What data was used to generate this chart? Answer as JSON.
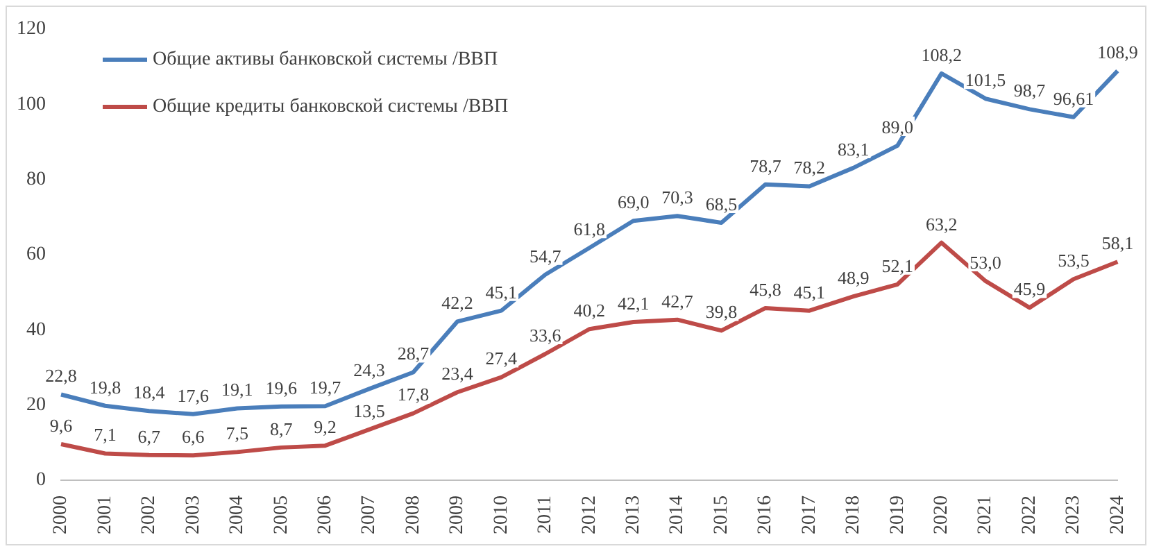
{
  "chart_data": {
    "type": "line",
    "categories": [
      "2000",
      "2001",
      "2002",
      "2003",
      "2004",
      "2005",
      "2006",
      "2007",
      "2008",
      "2009",
      "2010",
      "2011",
      "2012",
      "2013",
      "2014",
      "2015",
      "2016",
      "2017",
      "2018",
      "2019",
      "2020",
      "2021",
      "2022",
      "2023",
      "2024"
    ],
    "series": [
      {
        "name": "Общие активы банковской системы /ВВП",
        "color": "#4a7ebb",
        "values": [
          22.8,
          19.8,
          18.4,
          17.6,
          19.1,
          19.6,
          19.7,
          24.3,
          28.7,
          42.2,
          45.1,
          54.7,
          61.8,
          69.0,
          70.3,
          68.5,
          78.7,
          78.2,
          83.1,
          89.0,
          108.2,
          101.5,
          98.7,
          96.61,
          108.9
        ],
        "value_labels": [
          "22,8",
          "19,8",
          "18,4",
          "17,6",
          "19,1",
          "19,6",
          "19,7",
          "24,3",
          "28,7",
          "42,2",
          "45,1",
          "54,7",
          "61,8",
          "69,0",
          "70,3",
          "68,5",
          "78,7",
          "78,2",
          "83,1",
          "89,0",
          "108,2",
          "101,5",
          "98,7",
          "96,61",
          "108,9"
        ]
      },
      {
        "name": "Общие кредиты банковской системы /ВВП",
        "color": "#be4b48",
        "values": [
          9.6,
          7.1,
          6.7,
          6.6,
          7.5,
          8.7,
          9.2,
          13.5,
          17.8,
          23.4,
          27.4,
          33.6,
          40.2,
          42.1,
          42.7,
          39.8,
          45.8,
          45.1,
          48.9,
          52.1,
          63.2,
          53.0,
          45.9,
          53.5,
          58.1
        ],
        "value_labels": [
          "9,6",
          "7,1",
          "6,7",
          "6,6",
          "7,5",
          "8,7",
          "9,2",
          "13,5",
          "17,8",
          "23,4",
          "27,4",
          "33,6",
          "40,2",
          "42,1",
          "42,7",
          "39,8",
          "45,8",
          "45,1",
          "48,9",
          "52,1",
          "63,2",
          "53,0",
          "45,9",
          "53,5",
          "58,1"
        ]
      }
    ],
    "ylim": [
      0,
      120
    ],
    "yticks": [
      0,
      20,
      40,
      60,
      80,
      100,
      120
    ],
    "grid": false,
    "legend": "top left",
    "marker": "none",
    "line_style": "solid"
  }
}
